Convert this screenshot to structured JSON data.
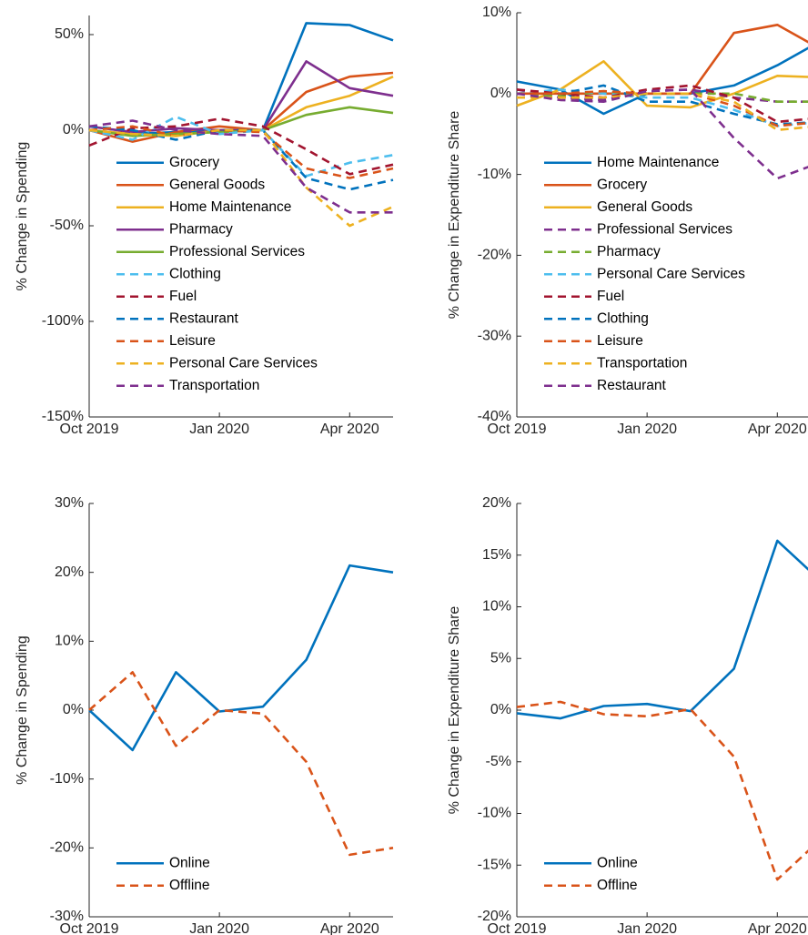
{
  "chart_data": [
    {
      "type": "line",
      "ylabel": "% Change in Spending",
      "categories": [
        "Oct 2019",
        null,
        null,
        "Jan 2020",
        null,
        null,
        "Apr 2020",
        null
      ],
      "ylim": [
        -150,
        60
      ],
      "yticks": [
        {
          "value": -150,
          "label": "-150%"
        },
        {
          "value": -100,
          "label": "-100%"
        },
        {
          "value": -50,
          "label": "-50%"
        },
        {
          "value": 0,
          "label": "0%"
        },
        {
          "value": 50,
          "label": "50%"
        }
      ],
      "legend": "southwest",
      "series": [
        {
          "name": "Grocery",
          "color": "#0072BD",
          "line_style": "solid",
          "values": [
            0,
            -2,
            -1,
            0,
            0,
            56,
            55,
            47
          ]
        },
        {
          "name": "General Goods",
          "color": "#D95319",
          "line_style": "solid",
          "values": [
            0,
            -6,
            -1,
            2,
            0,
            20,
            28,
            30
          ]
        },
        {
          "name": "Home Maintenance",
          "color": "#EDB120",
          "line_style": "solid",
          "values": [
            0,
            -2,
            -3,
            0,
            0,
            12,
            18,
            28
          ]
        },
        {
          "name": "Pharmacy",
          "color": "#7E2F8E",
          "line_style": "solid",
          "values": [
            2,
            -1,
            1,
            0,
            0,
            36,
            22,
            18
          ]
        },
        {
          "name": "Professional Services",
          "color": "#77AC30",
          "line_style": "solid",
          "values": [
            0,
            -3,
            -2,
            -1,
            0,
            8,
            12,
            9
          ]
        },
        {
          "name": "Clothing",
          "color": "#4DBEEE",
          "line_style": "dashed",
          "values": [
            0,
            -5,
            7,
            -2,
            0,
            -24,
            -17,
            -13
          ]
        },
        {
          "name": "Fuel",
          "color": "#A2142F",
          "line_style": "dashed",
          "values": [
            -8,
            1,
            2,
            6,
            2,
            -10,
            -23,
            -18
          ]
        },
        {
          "name": "Restaurant",
          "color": "#0072BD",
          "line_style": "dashed",
          "values": [
            2,
            0,
            -5,
            0,
            0,
            -25,
            -31,
            -26
          ]
        },
        {
          "name": "Leisure",
          "color": "#D95319",
          "line_style": "dashed",
          "values": [
            0,
            2,
            -3,
            0,
            -1,
            -20,
            -25,
            -20
          ]
        },
        {
          "name": "Personal Care Services",
          "color": "#EDB120",
          "line_style": "dashed",
          "values": [
            0,
            -2,
            -3,
            0,
            0,
            -30,
            -50,
            -40
          ]
        },
        {
          "name": "Transportation",
          "color": "#7E2F8E",
          "line_style": "dashed",
          "values": [
            2,
            5,
            0,
            -2,
            -3,
            -30,
            -43,
            -43
          ]
        }
      ]
    },
    {
      "type": "line",
      "ylabel": "% Change in Expenditure Share",
      "categories": [
        "Oct 2019",
        null,
        null,
        "Jan 2020",
        null,
        null,
        "Apr 2020",
        null
      ],
      "ylim": [
        -40,
        10
      ],
      "yticks": [
        {
          "value": -40,
          "label": "-40%"
        },
        {
          "value": -30,
          "label": "-30%"
        },
        {
          "value": -20,
          "label": "-20%"
        },
        {
          "value": -10,
          "label": "-10%"
        },
        {
          "value": 0,
          "label": "0%"
        },
        {
          "value": 10,
          "label": "10%"
        }
      ],
      "legend": "southwest",
      "series": [
        {
          "name": "Home Maintenance",
          "color": "#0072BD",
          "line_style": "solid",
          "values": [
            1.5,
            0.5,
            -2.5,
            0,
            0,
            1,
            3.5,
            6.5
          ]
        },
        {
          "name": "Grocery",
          "color": "#D95319",
          "line_style": "solid",
          "values": [
            0,
            0,
            0,
            0,
            0,
            7.5,
            8.5,
            5.5
          ]
        },
        {
          "name": "General Goods",
          "color": "#EDB120",
          "line_style": "solid",
          "values": [
            -1.5,
            0.5,
            4,
            -1.5,
            -1.7,
            0,
            2.2,
            2
          ]
        },
        {
          "name": "Professional Services",
          "color": "#7E2F8E",
          "line_style": "dashed",
          "values": [
            0.5,
            -0.5,
            -0.8,
            0.3,
            0.5,
            -0.5,
            -1,
            -1
          ]
        },
        {
          "name": "Pharmacy",
          "color": "#77AC30",
          "line_style": "dashed",
          "values": [
            0,
            -0.3,
            0.2,
            0,
            0,
            0,
            -1,
            -1
          ]
        },
        {
          "name": "Personal Care Services",
          "color": "#4DBEEE",
          "line_style": "dashed",
          "values": [
            0,
            0.5,
            0,
            -0.5,
            -0.5,
            -2,
            -4,
            -3.5
          ]
        },
        {
          "name": "Fuel",
          "color": "#A2142F",
          "line_style": "dashed",
          "values": [
            0.5,
            0,
            -0.5,
            0.5,
            1,
            -0.5,
            -3.5,
            -3
          ]
        },
        {
          "name": "Clothing",
          "color": "#0072BD",
          "line_style": "dashed",
          "values": [
            0,
            0,
            1,
            -1,
            -1,
            -2.5,
            -3.8,
            -3.5
          ]
        },
        {
          "name": "Leisure",
          "color": "#D95319",
          "line_style": "dashed",
          "values": [
            0,
            0,
            0.3,
            0,
            0,
            -1.5,
            -4,
            -3.5
          ]
        },
        {
          "name": "Transportation",
          "color": "#EDB120",
          "line_style": "dashed",
          "values": [
            -0.5,
            -0.5,
            -0.5,
            0,
            0,
            -1,
            -4.5,
            -4
          ]
        },
        {
          "name": "Restaurant",
          "color": "#7E2F8E",
          "line_style": "dashed",
          "values": [
            0,
            -0.8,
            -1,
            0.3,
            0.5,
            -5.5,
            -10.5,
            -8.5
          ]
        }
      ]
    },
    {
      "type": "line",
      "ylabel": "% Change in Spending",
      "categories": [
        "Oct 2019",
        null,
        null,
        "Jan 2020",
        null,
        null,
        "Apr 2020",
        null
      ],
      "ylim": [
        -30,
        30
      ],
      "yticks": [
        {
          "value": -30,
          "label": "-30%"
        },
        {
          "value": -20,
          "label": "-20%"
        },
        {
          "value": -10,
          "label": "-10%"
        },
        {
          "value": 0,
          "label": "0%"
        },
        {
          "value": 10,
          "label": "10%"
        },
        {
          "value": 20,
          "label": "20%"
        },
        {
          "value": 30,
          "label": "30%"
        }
      ],
      "legend": "southwest",
      "series": [
        {
          "name": "Online",
          "color": "#0072BD",
          "line_style": "solid",
          "values": [
            0,
            -5.8,
            5.5,
            -0.2,
            0.5,
            7.3,
            21,
            20
          ]
        },
        {
          "name": "Offline",
          "color": "#D95319",
          "line_style": "dashed",
          "values": [
            0,
            5.5,
            -5.2,
            0,
            -0.5,
            -7.5,
            -21,
            -20
          ]
        }
      ]
    },
    {
      "type": "line",
      "ylabel": "% Change in Expenditure Share",
      "categories": [
        "Oct 2019",
        null,
        null,
        "Jan 2020",
        null,
        null,
        "Apr 2020",
        null
      ],
      "ylim": [
        -20,
        20
      ],
      "yticks": [
        {
          "value": -20,
          "label": "-20%"
        },
        {
          "value": -15,
          "label": "-15%"
        },
        {
          "value": -10,
          "label": "-10%"
        },
        {
          "value": -5,
          "label": "-5%"
        },
        {
          "value": 0,
          "label": "0%"
        },
        {
          "value": 5,
          "label": "5%"
        },
        {
          "value": 10,
          "label": "10%"
        },
        {
          "value": 15,
          "label": "15%"
        },
        {
          "value": 20,
          "label": "20%"
        }
      ],
      "legend": "southwest",
      "series": [
        {
          "name": "Online",
          "color": "#0072BD",
          "line_style": "solid",
          "values": [
            -0.3,
            -0.8,
            0.4,
            0.6,
            -0.1,
            4,
            16.4,
            12.5
          ]
        },
        {
          "name": "Offline",
          "color": "#D95319",
          "line_style": "dashed",
          "values": [
            0.3,
            0.8,
            -0.4,
            -0.6,
            0.1,
            -4.5,
            -16.4,
            -12.5
          ]
        }
      ]
    }
  ]
}
